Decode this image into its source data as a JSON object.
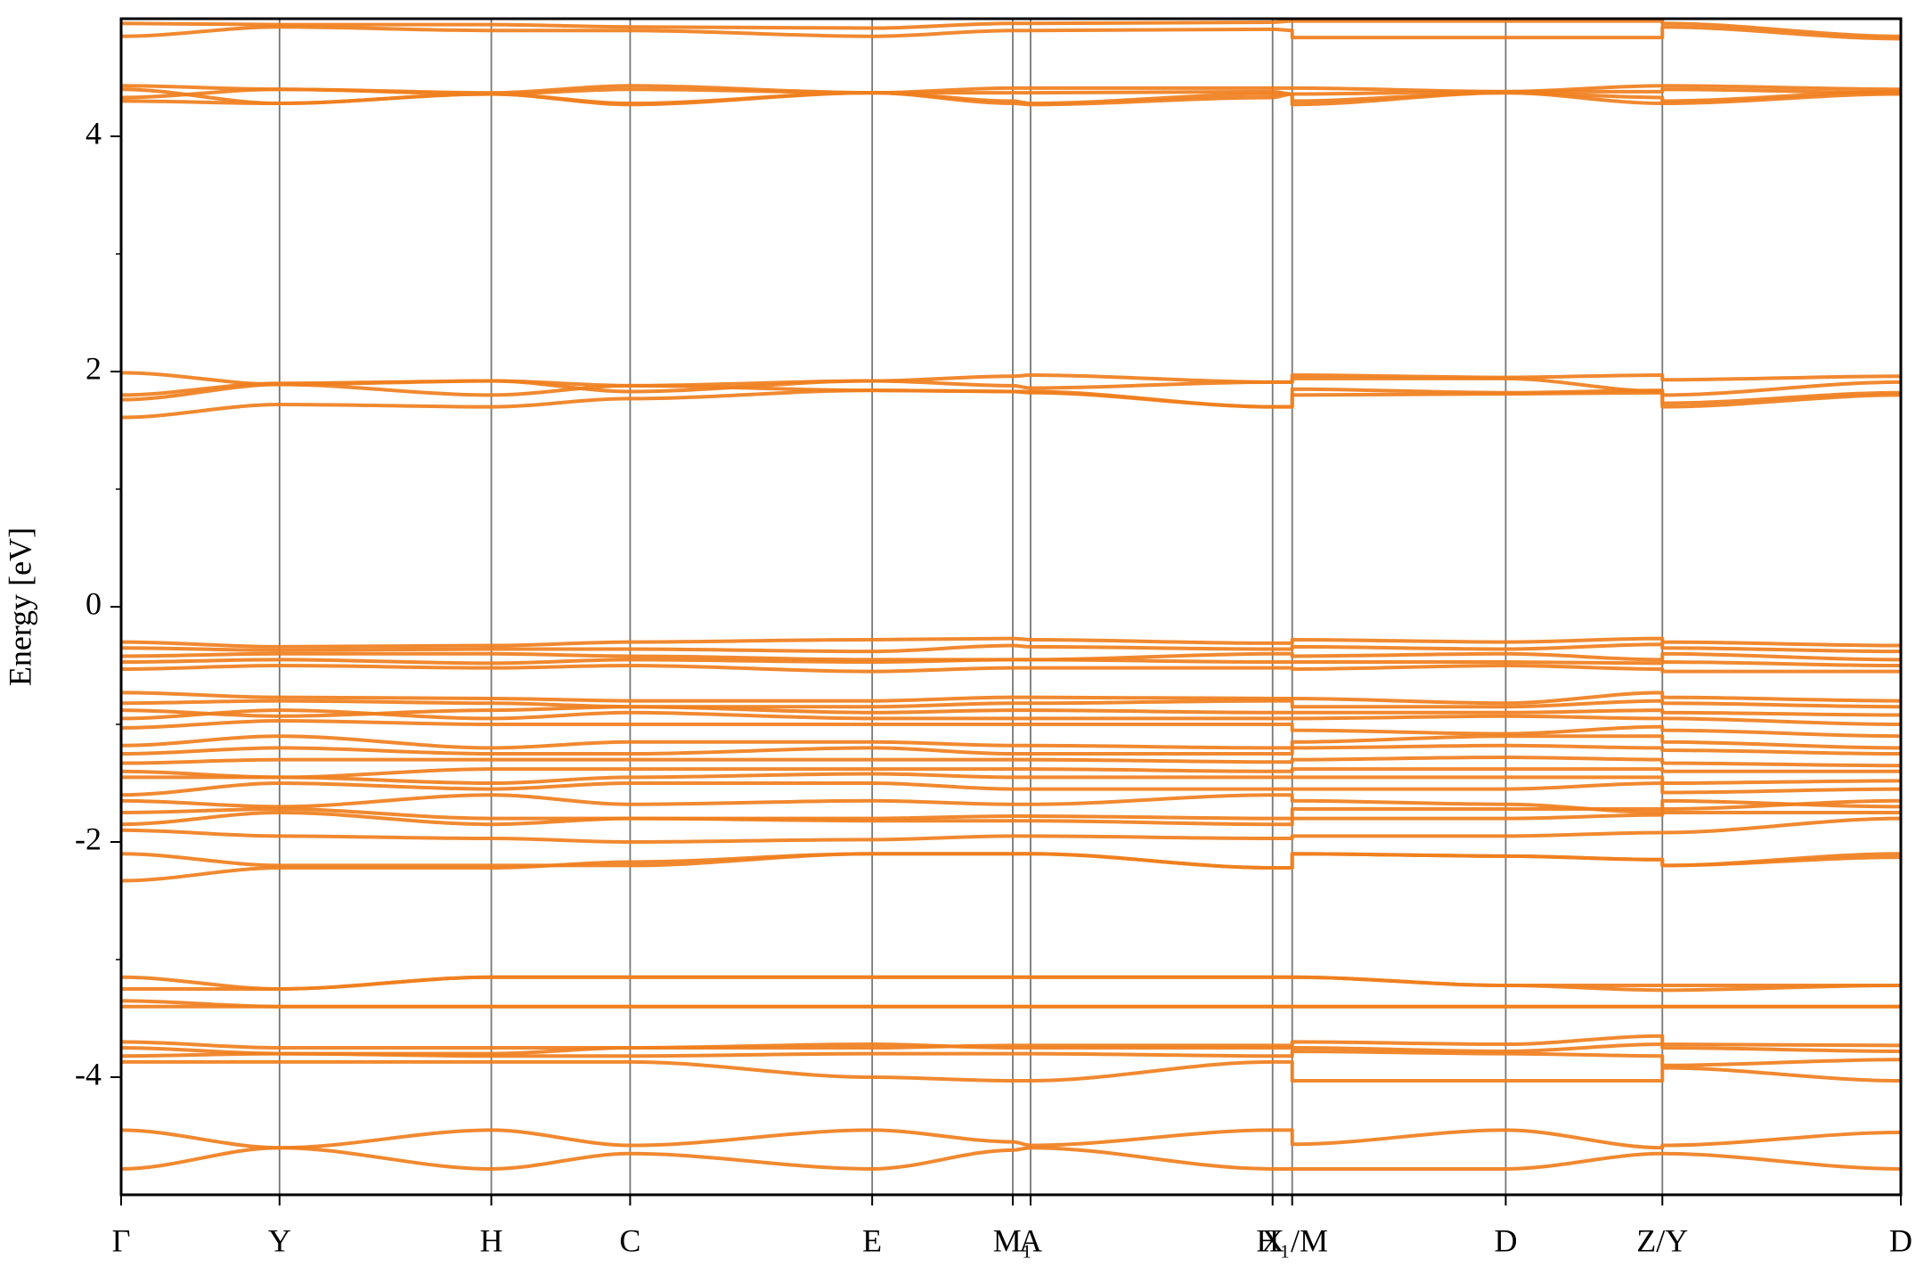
{
  "chart_data": {
    "type": "line",
    "ylabel": "Energy [eV]",
    "color": "#f07f1e",
    "xlim": [
      0,
      1
    ],
    "ylim": [
      -5,
      5
    ],
    "yticks": [
      -4,
      -2,
      0,
      2,
      4
    ],
    "minor_yticks": [
      -3,
      -1,
      1,
      3
    ],
    "xticks": [
      {
        "value": 0,
        "label": "Γ"
      },
      {
        "value": 0.089,
        "label": "Y"
      },
      {
        "value": 0.208,
        "label": "H"
      },
      {
        "value": 0.286,
        "label": "C"
      },
      {
        "value": 0.422,
        "label": "E"
      },
      {
        "value": 0.501,
        "label": "M₁"
      },
      {
        "value": 0.511,
        "label": "A"
      },
      {
        "value": 0.647,
        "label": "X"
      },
      {
        "value": 0.658,
        "label": "H₁/M"
      },
      {
        "value": 0.778,
        "label": "D"
      },
      {
        "value": 0.866,
        "label": "Z/Y"
      },
      {
        "value": 1,
        "label": "D"
      }
    ],
    "x": [
      0,
      0.089,
      0.208,
      0.286,
      0.422,
      0.501,
      0.511,
      0.647,
      0.658,
      0.658,
      0.778,
      0.866,
      0.866,
      1
    ],
    "series": [
      {
        "values": [
          4.96,
          4.95,
          4.95,
          4.93,
          4.92,
          4.96,
          4.96,
          4.97,
          4.98,
          4.98,
          4.98,
          4.98,
          4.96,
          4.85
        ]
      },
      {
        "values": [
          4.85,
          4.93,
          4.9,
          4.9,
          4.85,
          4.9,
          4.9,
          4.91,
          4.9,
          4.84,
          4.84,
          4.84,
          4.93,
          4.83
        ]
      },
      {
        "values": [
          4.43,
          4.4,
          4.37,
          4.43,
          4.37,
          4.41,
          4.41,
          4.41,
          4.41,
          4.41,
          4.38,
          4.43,
          4.43,
          4.4
        ]
      },
      {
        "values": [
          4.4,
          4.28,
          4.36,
          4.4,
          4.37,
          4.37,
          4.37,
          4.38,
          4.36,
          4.36,
          4.38,
          4.38,
          4.4,
          4.37
        ]
      },
      {
        "values": [
          4.33,
          4.4,
          4.36,
          4.28,
          4.37,
          4.3,
          4.28,
          4.36,
          4.36,
          4.3,
          4.37,
          4.33,
          4.3,
          4.38
        ]
      },
      {
        "values": [
          4.3,
          4.28,
          4.36,
          4.27,
          4.37,
          4.28,
          4.27,
          4.33,
          4.36,
          4.27,
          4.37,
          4.28,
          4.28,
          4.36
        ]
      },
      {
        "values": [
          1.99,
          1.89,
          1.92,
          1.83,
          1.92,
          1.96,
          1.97,
          1.91,
          1.91,
          1.97,
          1.95,
          1.97,
          1.93,
          1.96
        ]
      },
      {
        "values": [
          1.8,
          1.9,
          1.92,
          1.88,
          1.92,
          1.88,
          1.86,
          1.91,
          1.91,
          1.94,
          1.94,
          1.83,
          1.8,
          1.91
        ]
      },
      {
        "values": [
          1.76,
          1.89,
          1.8,
          1.88,
          1.84,
          1.83,
          1.83,
          1.7,
          1.7,
          1.85,
          1.82,
          1.84,
          1.73,
          1.82
        ]
      },
      {
        "values": [
          1.61,
          1.72,
          1.7,
          1.77,
          1.84,
          1.83,
          1.82,
          1.7,
          1.7,
          1.8,
          1.81,
          1.82,
          1.7,
          1.8
        ]
      },
      {
        "values": [
          -0.3,
          -0.34,
          -0.33,
          -0.3,
          -0.28,
          -0.27,
          -0.28,
          -0.31,
          -0.31,
          -0.28,
          -0.3,
          -0.27,
          -0.3,
          -0.33
        ]
      },
      {
        "values": [
          -0.35,
          -0.37,
          -0.36,
          -0.36,
          -0.38,
          -0.33,
          -0.34,
          -0.36,
          -0.36,
          -0.34,
          -0.36,
          -0.32,
          -0.35,
          -0.38
        ]
      },
      {
        "values": [
          -0.42,
          -0.4,
          -0.4,
          -0.42,
          -0.45,
          -0.45,
          -0.45,
          -0.4,
          -0.4,
          -0.42,
          -0.4,
          -0.45,
          -0.4,
          -0.45
        ]
      },
      {
        "values": [
          -0.47,
          -0.45,
          -0.48,
          -0.45,
          -0.47,
          -0.45,
          -0.45,
          -0.47,
          -0.47,
          -0.47,
          -0.47,
          -0.48,
          -0.47,
          -0.5
        ]
      },
      {
        "values": [
          -0.53,
          -0.5,
          -0.52,
          -0.5,
          -0.55,
          -0.52,
          -0.52,
          -0.52,
          -0.52,
          -0.53,
          -0.5,
          -0.53,
          -0.55,
          -0.55
        ]
      },
      {
        "values": [
          -0.73,
          -0.77,
          -0.78,
          -0.8,
          -0.8,
          -0.77,
          -0.77,
          -0.78,
          -0.78,
          -0.78,
          -0.82,
          -0.73,
          -0.77,
          -0.8
        ]
      },
      {
        "values": [
          -0.82,
          -0.8,
          -0.82,
          -0.85,
          -0.85,
          -0.82,
          -0.82,
          -0.8,
          -0.8,
          -0.85,
          -0.85,
          -0.8,
          -0.82,
          -0.85
        ]
      },
      {
        "values": [
          -0.88,
          -0.93,
          -0.88,
          -0.85,
          -0.9,
          -0.88,
          -0.88,
          -0.9,
          -0.9,
          -0.9,
          -0.9,
          -0.88,
          -0.9,
          -0.92
        ]
      },
      {
        "values": [
          -0.95,
          -0.88,
          -0.95,
          -0.9,
          -0.95,
          -0.95,
          -0.95,
          -0.95,
          -0.95,
          -0.95,
          -0.93,
          -0.95,
          -0.95,
          -1.0
        ]
      },
      {
        "values": [
          -1.03,
          -0.97,
          -1.0,
          -1.0,
          -1.0,
          -1.0,
          -1.0,
          -1.0,
          -1.0,
          -1.05,
          -1.08,
          -1.02,
          -1.05,
          -1.1
        ]
      },
      {
        "values": [
          -1.18,
          -1.1,
          -1.2,
          -1.15,
          -1.15,
          -1.18,
          -1.18,
          -1.2,
          -1.2,
          -1.15,
          -1.1,
          -1.1,
          -1.15,
          -1.2
        ]
      },
      {
        "values": [
          -1.25,
          -1.2,
          -1.25,
          -1.25,
          -1.2,
          -1.25,
          -1.25,
          -1.25,
          -1.25,
          -1.2,
          -1.18,
          -1.2,
          -1.22,
          -1.25
        ]
      },
      {
        "values": [
          -1.33,
          -1.3,
          -1.3,
          -1.3,
          -1.3,
          -1.3,
          -1.3,
          -1.32,
          -1.32,
          -1.3,
          -1.28,
          -1.3,
          -1.33,
          -1.35
        ]
      },
      {
        "values": [
          -1.4,
          -1.45,
          -1.38,
          -1.38,
          -1.38,
          -1.38,
          -1.38,
          -1.4,
          -1.4,
          -1.38,
          -1.38,
          -1.38,
          -1.4,
          -1.4
        ]
      },
      {
        "values": [
          -1.45,
          -1.45,
          -1.5,
          -1.45,
          -1.42,
          -1.45,
          -1.45,
          -1.45,
          -1.45,
          -1.45,
          -1.45,
          -1.45,
          -1.5,
          -1.48
        ]
      },
      {
        "values": [
          -1.6,
          -1.5,
          -1.55,
          -1.5,
          -1.5,
          -1.55,
          -1.55,
          -1.55,
          -1.55,
          -1.55,
          -1.55,
          -1.5,
          -1.58,
          -1.55
        ]
      },
      {
        "values": [
          -1.65,
          -1.7,
          -1.6,
          -1.68,
          -1.65,
          -1.68,
          -1.68,
          -1.6,
          -1.6,
          -1.65,
          -1.68,
          -1.75,
          -1.65,
          -1.7
        ]
      },
      {
        "values": [
          -1.75,
          -1.72,
          -1.8,
          -1.8,
          -1.8,
          -1.78,
          -1.78,
          -1.8,
          -1.8,
          -1.72,
          -1.72,
          -1.72,
          -1.72,
          -1.65
        ]
      },
      {
        "values": [
          -1.85,
          -1.75,
          -1.85,
          -1.8,
          -1.82,
          -1.82,
          -1.82,
          -1.85,
          -1.85,
          -1.8,
          -1.8,
          -1.77,
          -1.75,
          -1.75
        ]
      },
      {
        "values": [
          -1.9,
          -1.95,
          -1.97,
          -2.0,
          -1.98,
          -1.95,
          -1.95,
          -1.97,
          -1.97,
          -1.95,
          -1.95,
          -1.92,
          -1.92,
          -1.8
        ]
      },
      {
        "values": [
          -2.1,
          -2.2,
          -2.2,
          -2.2,
          -2.1,
          -2.1,
          -2.1,
          -2.22,
          -2.22,
          -2.1,
          -2.12,
          -2.15,
          -2.2,
          -2.1
        ]
      },
      {
        "values": [
          -2.33,
          -2.22,
          -2.22,
          -2.17,
          -2.1,
          -2.1,
          -2.1,
          -2.22,
          -2.22,
          -2.1,
          -2.12,
          -2.15,
          -2.2,
          -2.13
        ]
      },
      {
        "values": [
          -3.15,
          -3.25,
          -3.15,
          -3.15,
          -3.15,
          -3.15,
          -3.15,
          -3.15,
          -3.15,
          -3.15,
          -3.22,
          -3.22,
          -3.22,
          -3.22
        ]
      },
      {
        "values": [
          -3.25,
          -3.25,
          -3.15,
          -3.15,
          -3.15,
          -3.15,
          -3.15,
          -3.15,
          -3.15,
          -3.15,
          -3.22,
          -3.26,
          -3.26,
          -3.22
        ]
      },
      {
        "values": [
          -3.35,
          -3.4,
          -3.4,
          -3.4,
          -3.4,
          -3.4,
          -3.4,
          -3.4,
          -3.4,
          -3.4,
          -3.4,
          -3.4,
          -3.4,
          -3.4
        ]
      },
      {
        "values": [
          -3.4,
          -3.4,
          -3.4,
          -3.4,
          -3.4,
          -3.4,
          -3.4,
          -3.4,
          -3.4,
          -3.4,
          -3.4,
          -3.4,
          -3.4,
          -3.4
        ]
      },
      {
        "values": [
          -3.7,
          -3.75,
          -3.75,
          -3.75,
          -3.75,
          -3.73,
          -3.73,
          -3.73,
          -3.73,
          -3.7,
          -3.72,
          -3.65,
          -3.72,
          -3.73
        ]
      },
      {
        "values": [
          -3.75,
          -3.8,
          -3.8,
          -3.75,
          -3.72,
          -3.75,
          -3.75,
          -3.75,
          -3.75,
          -3.75,
          -3.78,
          -3.72,
          -3.75,
          -3.78
        ]
      },
      {
        "values": [
          -3.82,
          -3.8,
          -3.82,
          -3.82,
          -3.8,
          -3.8,
          -3.8,
          -3.82,
          -3.82,
          -3.78,
          -3.8,
          -3.82,
          -3.9,
          -3.85
        ]
      },
      {
        "values": [
          -3.87,
          -3.87,
          -3.87,
          -3.87,
          -4.0,
          -4.03,
          -4.03,
          -3.87,
          -3.87,
          -4.03,
          -4.03,
          -4.03,
          -3.92,
          -4.03
        ]
      },
      {
        "values": [
          -4.45,
          -4.6,
          -4.45,
          -4.58,
          -4.45,
          -4.55,
          -4.58,
          -4.45,
          -4.45,
          -4.57,
          -4.45,
          -4.6,
          -4.58,
          -4.47
        ]
      },
      {
        "values": [
          -4.78,
          -4.6,
          -4.78,
          -4.65,
          -4.78,
          -4.62,
          -4.6,
          -4.78,
          -4.78,
          -4.78,
          -4.78,
          -4.65,
          -4.65,
          -4.78
        ]
      }
    ]
  }
}
